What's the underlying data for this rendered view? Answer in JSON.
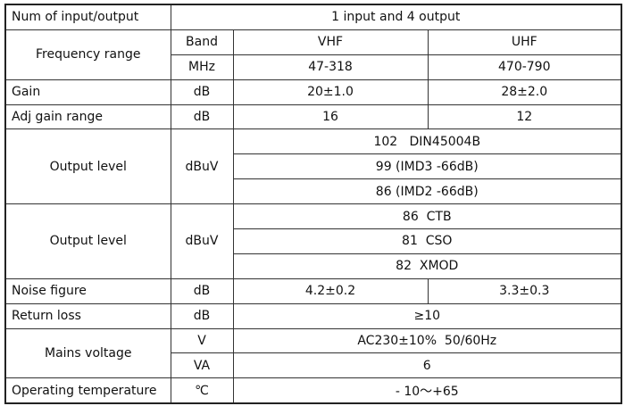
{
  "rows": {
    "io": {
      "label": "Num of input/output",
      "value": "1 input and 4 output"
    },
    "freq": {
      "label": "Frequency range",
      "unit1": "Band",
      "vhf": "VHF",
      "uhf": "UHF",
      "unit2": "MHz",
      "vhf_range": "47-318",
      "uhf_range": "470-790"
    },
    "gain": {
      "label": "Gain",
      "unit": "dB",
      "vhf": "20±1.0",
      "uhf": "28±2.0"
    },
    "adj": {
      "label": "Adj gain range",
      "unit": "dB",
      "vhf": "16",
      "uhf": "12"
    },
    "out1": {
      "label": "Output level",
      "unit": "dBuV",
      "values": [
        "102   DIN45004B",
        "99 (IMD3 -66dB)",
        "86 (IMD2 -66dB)"
      ]
    },
    "out2": {
      "label": "Output level",
      "unit": "dBuV",
      "values": [
        "86  CTB",
        "81  CSO",
        "82  XMOD"
      ]
    },
    "noise": {
      "label": "Noise figure",
      "unit": "dB",
      "vhf": "4.2±0.2",
      "uhf": "3.3±0.3"
    },
    "ret": {
      "label": "Return loss",
      "unit": "dB",
      "value": "≥10"
    },
    "mains": {
      "label": "Mains voltage",
      "unit1": "V",
      "value1": "AC230±10%  50/60Hz",
      "unit2": "VA",
      "value2": "6"
    },
    "temp": {
      "label": "Operating temperature",
      "unit": "℃",
      "value": "- 10～+65"
    }
  }
}
